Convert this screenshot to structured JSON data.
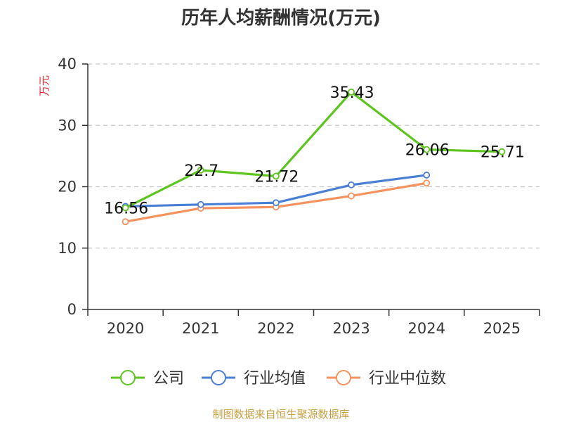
{
  "chart_data": {
    "type": "line",
    "title": "历年人均薪酬情况(万元)",
    "ylabel": "万元",
    "xlabel": "",
    "categories": [
      "2020",
      "2021",
      "2022",
      "2023",
      "2024",
      "2025"
    ],
    "ylim": [
      0,
      40
    ],
    "yticks": [
      0,
      10,
      20,
      30,
      40
    ],
    "grid": true,
    "legend_position": "bottom",
    "series": [
      {
        "name": "公司",
        "color": "#5ec41f",
        "values": [
          16.56,
          22.7,
          21.72,
          35.43,
          26.06,
          25.71
        ],
        "labels": [
          "16.56",
          "22.7",
          "21.72",
          "35.43",
          "26.06",
          "25.71"
        ]
      },
      {
        "name": "行业均值",
        "color": "#4a7fd6",
        "values": [
          16.8,
          17.1,
          17.4,
          20.3,
          21.9,
          null
        ]
      },
      {
        "name": "行业中位数",
        "color": "#f5925e",
        "values": [
          14.3,
          16.5,
          16.7,
          18.5,
          20.6,
          null
        ]
      }
    ]
  },
  "footer": {
    "source": "制图数据来自恒生聚源数据库"
  }
}
